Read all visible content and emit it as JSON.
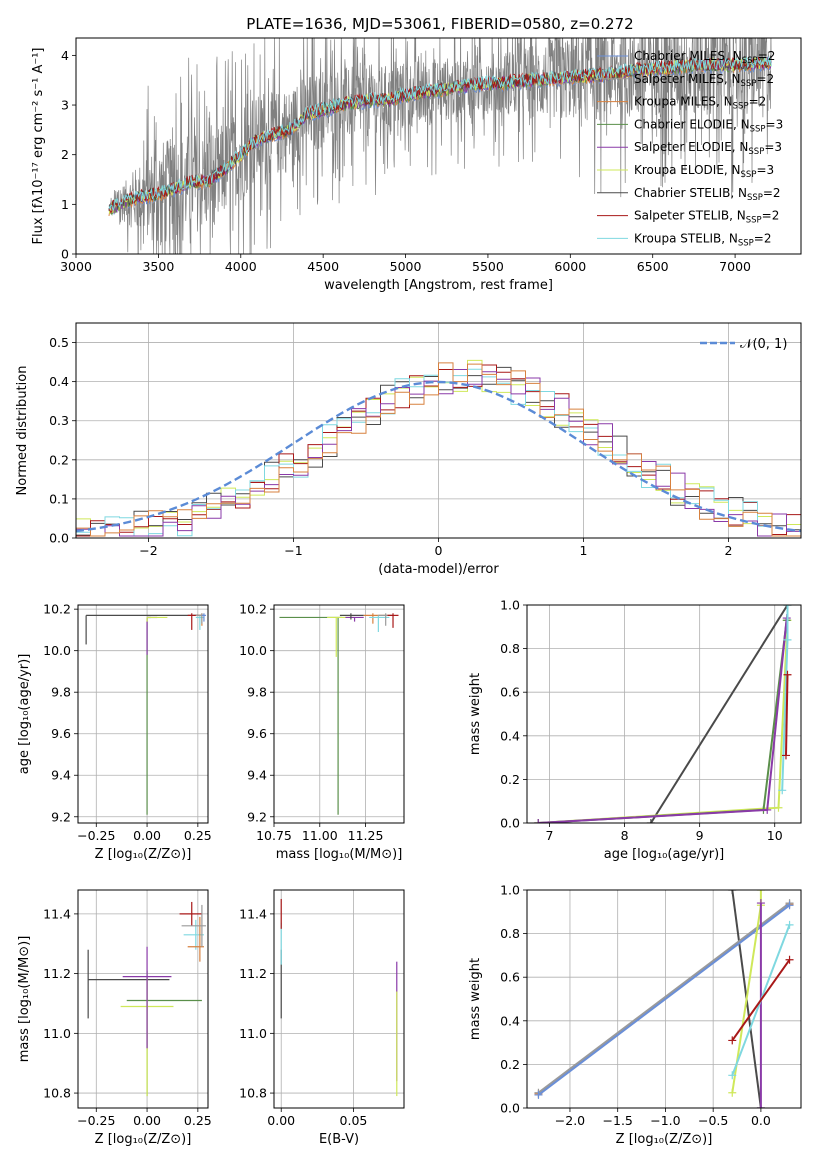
{
  "title": "PLATE=1636, MJD=53061, FIBERID=0580, z=0.272",
  "palette": {
    "Chabrier MILES": "#6a8fd8",
    "Salpeter MILES": "#9a9a9a",
    "Kroupa MILES": "#d7813f",
    "Chabrier ELODIE": "#5a8f4a",
    "Salpeter ELODIE": "#8a3aa8",
    "Kroupa ELODIE": "#cfe85a",
    "Chabrier STELIB": "#4a4a4a",
    "Salpeter STELIB": "#a81818",
    "Kroupa STELIB": "#7fd8e0"
  },
  "chart_data": [
    {
      "id": "spectrum",
      "type": "line",
      "xlabel": "wavelength [Angstrom, rest frame]",
      "ylabel": "Flux [fλ10⁻¹⁷ erg cm⁻² s⁻¹ A⁻¹]",
      "xlim": [
        3000,
        7400
      ],
      "ylim": [
        0,
        4.35
      ],
      "xticks": [
        "3000",
        "3500",
        "4000",
        "4500",
        "5000",
        "5500",
        "6000",
        "6500",
        "7000"
      ],
      "yticks": [
        "0",
        "1",
        "2",
        "3",
        "4"
      ],
      "grid": false,
      "legend_position": "upper right",
      "data_color": "#808080",
      "continuum": {
        "x": [
          3200,
          3300,
          3400,
          3500,
          3600,
          3700,
          3800,
          3900,
          4000,
          4100,
          4200,
          4300,
          4400,
          4500,
          4600,
          4700,
          4800,
          4900,
          5000,
          5200,
          5400,
          5600,
          5800,
          6000,
          6200,
          6400,
          6600,
          6800,
          7000,
          7200
        ],
        "y": [
          0.9,
          1.05,
          1.15,
          1.2,
          1.3,
          1.45,
          1.45,
          1.7,
          2.0,
          2.3,
          2.4,
          2.5,
          2.8,
          2.9,
          3.0,
          3.05,
          3.1,
          3.1,
          3.2,
          3.3,
          3.4,
          3.45,
          3.5,
          3.55,
          3.6,
          3.7,
          3.75,
          3.8,
          3.8,
          3.85
        ]
      },
      "data_noise": [
        {
          "x": 3200,
          "amp": 0.15
        },
        {
          "x": 3500,
          "amp": 1.8
        },
        {
          "x": 4500,
          "amp": 1.3
        },
        {
          "x": 5500,
          "amp": 1.0
        },
        {
          "x": 6200,
          "amp": 1.6
        },
        {
          "x": 7200,
          "amp": 1.7
        }
      ],
      "series": [
        {
          "name": "Chabrier MILES, N",
          "sub": "SSP",
          "tail": "=2"
        },
        {
          "name": "Salpeter MILES, N",
          "sub": "SSP",
          "tail": "=2"
        },
        {
          "name": "Kroupa MILES, N",
          "sub": "SSP",
          "tail": "=2"
        },
        {
          "name": "Chabrier ELODIE, N",
          "sub": "SSP",
          "tail": "=3"
        },
        {
          "name": "Salpeter ELODIE, N",
          "sub": "SSP",
          "tail": "=3"
        },
        {
          "name": "Kroupa ELODIE, N",
          "sub": "SSP",
          "tail": "=3"
        },
        {
          "name": "Chabrier STELIB, N",
          "sub": "SSP",
          "tail": "=2"
        },
        {
          "name": "Salpeter STELIB, N",
          "sub": "SSP",
          "tail": "=2"
        },
        {
          "name": "Kroupa STELIB, N",
          "sub": "SSP",
          "tail": "=2"
        }
      ]
    },
    {
      "id": "residuals",
      "type": "line",
      "xlabel": "(data-model)/error",
      "ylabel": "Normed distribution",
      "xlim": [
        -2.5,
        2.5
      ],
      "ylim": [
        0,
        0.55
      ],
      "xticks": [
        "−2",
        "−1",
        "0",
        "1",
        "2"
      ],
      "xtick_values": [
        -2,
        -1,
        0,
        1,
        2
      ],
      "ytick_values": [
        0,
        0.1,
        0.2,
        0.3,
        0.4,
        0.5
      ],
      "yticks": [
        "0.0",
        "0.1",
        "0.2",
        "0.3",
        "0.4",
        "0.5"
      ],
      "grid": true,
      "legend_label": "𝒩(0, 1)",
      "gauss_color": "#5b8bd6",
      "hist_colors": [
        "Kroupa ELODIE",
        "Chabrier STELIB",
        "Salpeter STELIB",
        "Kroupa STELIB",
        "Salpeter ELODIE",
        "Kroupa MILES"
      ]
    },
    {
      "id": "age_vs_Z",
      "type": "scatter",
      "xlabel": "Z [log₁₀(Z/Z⊙)]",
      "ylabel": "age  [log₁₀(age/yr)]",
      "xlim": [
        -0.34,
        0.3
      ],
      "ylim": [
        9.17,
        10.22
      ],
      "xtick_values": [
        -0.25,
        0,
        0.25
      ],
      "xticks": [
        "−0.25",
        "0.00",
        "0.25"
      ],
      "ytick_values": [
        9.2,
        9.4,
        9.6,
        9.8,
        10.0,
        10.2
      ],
      "yticks": [
        "9.2",
        "9.4",
        "9.6",
        "9.8",
        "10.0",
        "10.2"
      ],
      "grid": true,
      "points": [
        {
          "c": "Chabrier STELIB",
          "x": -0.3,
          "y": 10.17,
          "xerr": [
            0,
            0.58
          ],
          "yerr": [
            0.14,
            0
          ]
        },
        {
          "c": "Chabrier ELODIE",
          "x": 0.0,
          "y": 10.16,
          "xerr": [
            0,
            0.02
          ],
          "yerr": [
            0.95,
            0
          ]
        },
        {
          "c": "Salpeter ELODIE",
          "x": 0.0,
          "y": 10.16,
          "xerr": [
            0,
            0.05
          ],
          "yerr": [
            0.18,
            0
          ]
        },
        {
          "c": "Kroupa ELODIE",
          "x": 0.0,
          "y": 10.16,
          "xerr": [
            0,
            0.1
          ],
          "yerr": [
            0.02,
            0
          ]
        },
        {
          "c": "Salpeter STELIB",
          "x": 0.22,
          "y": 10.17,
          "xerr": [
            0.02,
            0.03
          ],
          "yerr": [
            0.07,
            0.01
          ]
        },
        {
          "c": "Kroupa STELIB",
          "x": 0.26,
          "y": 10.16,
          "xerr": [
            0.02,
            0.02
          ],
          "yerr": [
            0.06,
            0.01
          ]
        },
        {
          "c": "Kroupa MILES",
          "x": 0.27,
          "y": 10.17,
          "xerr": [
            0.02,
            0.01
          ],
          "yerr": [
            0.05,
            0.01
          ]
        },
        {
          "c": "Salpeter MILES",
          "x": 0.27,
          "y": 10.17,
          "xerr": [
            0.03,
            0.01
          ],
          "yerr": [
            0.04,
            0.01
          ]
        },
        {
          "c": "Chabrier MILES",
          "x": 0.28,
          "y": 10.17,
          "xerr": [
            0.01,
            0.01
          ],
          "yerr": [
            0.03,
            0.01
          ]
        }
      ]
    },
    {
      "id": "age_vs_mass",
      "type": "scatter",
      "xlabel": "mass [log₁₀(M/M⊙)]",
      "ylabel": "",
      "xlim": [
        10.75,
        11.46
      ],
      "ylim": [
        9.17,
        10.22
      ],
      "xtick_values": [
        10.75,
        11.0,
        11.25
      ],
      "xticks": [
        "10.75",
        "11.00",
        "11.25"
      ],
      "ytick_values": [
        9.2,
        9.4,
        9.6,
        9.8,
        10.0,
        10.2
      ],
      "yticks": [
        "9.2",
        "9.4",
        "9.6",
        "9.8",
        "10.0",
        "10.2"
      ],
      "grid": true,
      "points": [
        {
          "c": "Chabrier ELODIE",
          "x": 11.1,
          "y": 10.16,
          "xerr": [
            0.32,
            0.02
          ],
          "yerr": [
            0.95,
            0
          ]
        },
        {
          "c": "Kroupa ELODIE",
          "x": 11.09,
          "y": 10.16,
          "xerr": [
            0.05,
            0.1
          ],
          "yerr": [
            0.19,
            0
          ]
        },
        {
          "c": "Salpeter ELODIE",
          "x": 11.19,
          "y": 10.16,
          "xerr": [
            0.05,
            0.05
          ],
          "yerr": [
            0.02,
            0
          ]
        },
        {
          "c": "Chabrier STELIB",
          "x": 11.17,
          "y": 10.17,
          "xerr": [
            0.06,
            0.07
          ],
          "yerr": [
            0.02,
            0.01
          ]
        },
        {
          "c": "Kroupa MILES",
          "x": 11.29,
          "y": 10.17,
          "xerr": [
            0.05,
            0.1
          ],
          "yerr": [
            0.04,
            0.01
          ]
        },
        {
          "c": "Kroupa STELIB",
          "x": 11.32,
          "y": 10.16,
          "xerr": [
            0.05,
            0.06
          ],
          "yerr": [
            0.07,
            0.01
          ]
        },
        {
          "c": "Salpeter MILES",
          "x": 11.36,
          "y": 10.17,
          "xerr": [
            0.04,
            0.04
          ],
          "yerr": [
            0.05,
            0.01
          ]
        },
        {
          "c": "Salpeter STELIB",
          "x": 11.4,
          "y": 10.17,
          "xerr": [
            0.03,
            0.03
          ],
          "yerr": [
            0.06,
            0.01
          ]
        }
      ]
    },
    {
      "id": "cum_weight_vs_age",
      "type": "line",
      "xlabel": "age  [log₁₀(age/yr)]",
      "ylabel": "mass weight",
      "xlim": [
        6.7,
        10.35
      ],
      "ylim": [
        0,
        1
      ],
      "xtick_values": [
        7,
        8,
        9,
        10
      ],
      "xticks": [
        "7",
        "8",
        "9",
        "10"
      ],
      "ytick_values": [
        0,
        0.2,
        0.4,
        0.6,
        0.8,
        1.0
      ],
      "yticks": [
        "0.0",
        "0.2",
        "0.4",
        "0.6",
        "0.8",
        "1.0"
      ],
      "grid": true,
      "series": [
        {
          "c": "Chabrier STELIB",
          "x": [
            8.35,
            10.17
          ],
          "y": [
            0.0,
            1.0
          ]
        },
        {
          "c": "Kroupa ELODIE",
          "x": [
            6.85,
            10.05,
            10.17
          ],
          "y": [
            0.0,
            0.07,
            0.93
          ]
        },
        {
          "c": "Chabrier ELODIE",
          "x": [
            6.85,
            9.85,
            10.16
          ],
          "y": [
            0.0,
            0.06,
            0.93
          ]
        },
        {
          "c": "Salpeter ELODIE",
          "x": [
            6.85,
            9.9,
            10.16
          ],
          "y": [
            0.0,
            0.06,
            0.94
          ]
        },
        {
          "c": "Kroupa STELIB",
          "x": [
            10.1,
            10.17,
            10.17
          ],
          "y": [
            0.15,
            0.84,
            1.0
          ]
        },
        {
          "c": "Salpeter STELIB",
          "x": [
            10.15,
            10.17
          ],
          "y": [
            0.31,
            0.68
          ]
        }
      ]
    },
    {
      "id": "mass_vs_Z",
      "type": "scatter",
      "xlabel": "Z [log₁₀(Z/Z⊙)]",
      "ylabel": "mass [log₁₀(M/M⊙)]",
      "xlim": [
        -0.34,
        0.3
      ],
      "ylim": [
        10.75,
        11.48
      ],
      "xtick_values": [
        -0.25,
        0,
        0.25
      ],
      "xticks": [
        "−0.25",
        "0.00",
        "0.25"
      ],
      "ytick_values": [
        10.8,
        11.0,
        11.2,
        11.4
      ],
      "yticks": [
        "10.8",
        "11.0",
        "11.2",
        "11.4"
      ],
      "grid": true,
      "points": [
        {
          "c": "Chabrier STELIB",
          "x": -0.29,
          "y": 11.18,
          "xerr": [
            0.0,
            0.4
          ],
          "yerr": [
            0.13,
            0.1
          ]
        },
        {
          "c": "Chabrier ELODIE",
          "x": 0.0,
          "y": 11.11,
          "xerr": [
            0.1,
            0.27
          ],
          "yerr": [
            0.32,
            0.1
          ]
        },
        {
          "c": "Kroupa ELODIE",
          "x": 0.0,
          "y": 11.09,
          "xerr": [
            0.13,
            0.13
          ],
          "yerr": [
            0.3,
            0.1
          ]
        },
        {
          "c": "Salpeter ELODIE",
          "x": 0.0,
          "y": 11.19,
          "xerr": [
            0.12,
            0.12
          ],
          "yerr": [
            0.24,
            0.1
          ]
        },
        {
          "c": "Salpeter STELIB",
          "x": 0.22,
          "y": 11.4,
          "xerr": [
            0.06,
            0.05
          ],
          "yerr": [
            0.04,
            0.04
          ]
        },
        {
          "c": "Kroupa STELIB",
          "x": 0.24,
          "y": 11.33,
          "xerr": [
            0.06,
            0.04
          ],
          "yerr": [
            0.05,
            0.05
          ]
        },
        {
          "c": "Kroupa MILES",
          "x": 0.26,
          "y": 11.29,
          "xerr": [
            0.06,
            0.02
          ],
          "yerr": [
            0.05,
            0.1
          ]
        },
        {
          "c": "Salpeter MILES",
          "x": 0.27,
          "y": 11.36,
          "xerr": [
            0.1,
            0.02
          ],
          "yerr": [
            0.07,
            0.07
          ]
        }
      ]
    },
    {
      "id": "mass_vs_EBV",
      "type": "scatter",
      "xlabel": "E(B-V)",
      "ylabel": "",
      "xlim": [
        -0.005,
        0.085
      ],
      "ylim": [
        10.75,
        11.48
      ],
      "xtick_values": [
        0.0,
        0.05
      ],
      "xticks": [
        "0.00",
        "0.05"
      ],
      "ytick_values": [
        10.8,
        11.0,
        11.2,
        11.4
      ],
      "yticks": [
        "10.8",
        "11.0",
        "11.2",
        "11.4"
      ],
      "grid": true,
      "points": [
        {
          "c": "Chabrier STELIB",
          "x": 0.0,
          "y": 11.18,
          "xerr": [
            0,
            0
          ],
          "yerr": [
            0.13,
            0.1
          ]
        },
        {
          "c": "Kroupa STELIB",
          "x": 0.0,
          "y": 11.33,
          "xerr": [
            0,
            0
          ],
          "yerr": [
            0.1,
            0.04
          ]
        },
        {
          "c": "Salpeter STELIB",
          "x": 0.0,
          "y": 11.4,
          "xerr": [
            0,
            0
          ],
          "yerr": [
            0.05,
            0.05
          ]
        },
        {
          "c": "Salpeter ELODIE",
          "x": 0.08,
          "y": 11.19,
          "xerr": [
            0,
            0
          ],
          "yerr": [
            0.35,
            0.05
          ]
        },
        {
          "c": "Kroupa ELODIE",
          "x": 0.08,
          "y": 11.09,
          "xerr": [
            0,
            0
          ],
          "yerr": [
            0.3,
            0.05
          ]
        }
      ]
    },
    {
      "id": "cum_weight_vs_Z",
      "type": "line",
      "xlabel": "Z [log₁₀(Z/Z⊙)]",
      "ylabel": "mass weight",
      "xlim": [
        -2.45,
        0.42
      ],
      "ylim": [
        0,
        1
      ],
      "xtick_values": [
        -2.0,
        -1.5,
        -1.0,
        -0.5,
        0.0
      ],
      "xticks": [
        "−2.0",
        "−1.5",
        "−1.0",
        "−0.5",
        "0.0"
      ],
      "ytick_values": [
        0,
        0.2,
        0.4,
        0.6,
        0.8,
        1.0
      ],
      "yticks": [
        "0.0",
        "0.2",
        "0.4",
        "0.6",
        "0.8",
        "1.0"
      ],
      "grid": true,
      "series": [
        {
          "c": "Chabrier STELIB",
          "x": [
            -0.3,
            0.0
          ],
          "y": [
            1.0,
            0.0
          ]
        },
        {
          "c": "Kroupa MILES",
          "x": [
            -2.33,
            0.3
          ],
          "y": [
            0.065,
            0.935
          ]
        },
        {
          "c": "Salpeter MILES",
          "x": [
            -2.33,
            0.3
          ],
          "y": [
            0.07,
            0.94
          ]
        },
        {
          "c": "Chabrier MILES",
          "x": [
            -2.33,
            0.3
          ],
          "y": [
            0.06,
            0.93
          ]
        },
        {
          "c": "Kroupa ELODIE",
          "x": [
            -0.3,
            0.0,
            0.0
          ],
          "y": [
            0.07,
            0.93,
            1.0
          ]
        },
        {
          "c": "Salpeter ELODIE",
          "x": [
            0.0,
            0.0
          ],
          "y": [
            0.94,
            0.0
          ]
        },
        {
          "c": "Kroupa STELIB",
          "x": [
            -0.3,
            0.3
          ],
          "y": [
            0.15,
            0.84
          ]
        },
        {
          "c": "Salpeter STELIB",
          "x": [
            -0.3,
            0.3
          ],
          "y": [
            0.31,
            0.68
          ]
        }
      ]
    }
  ]
}
